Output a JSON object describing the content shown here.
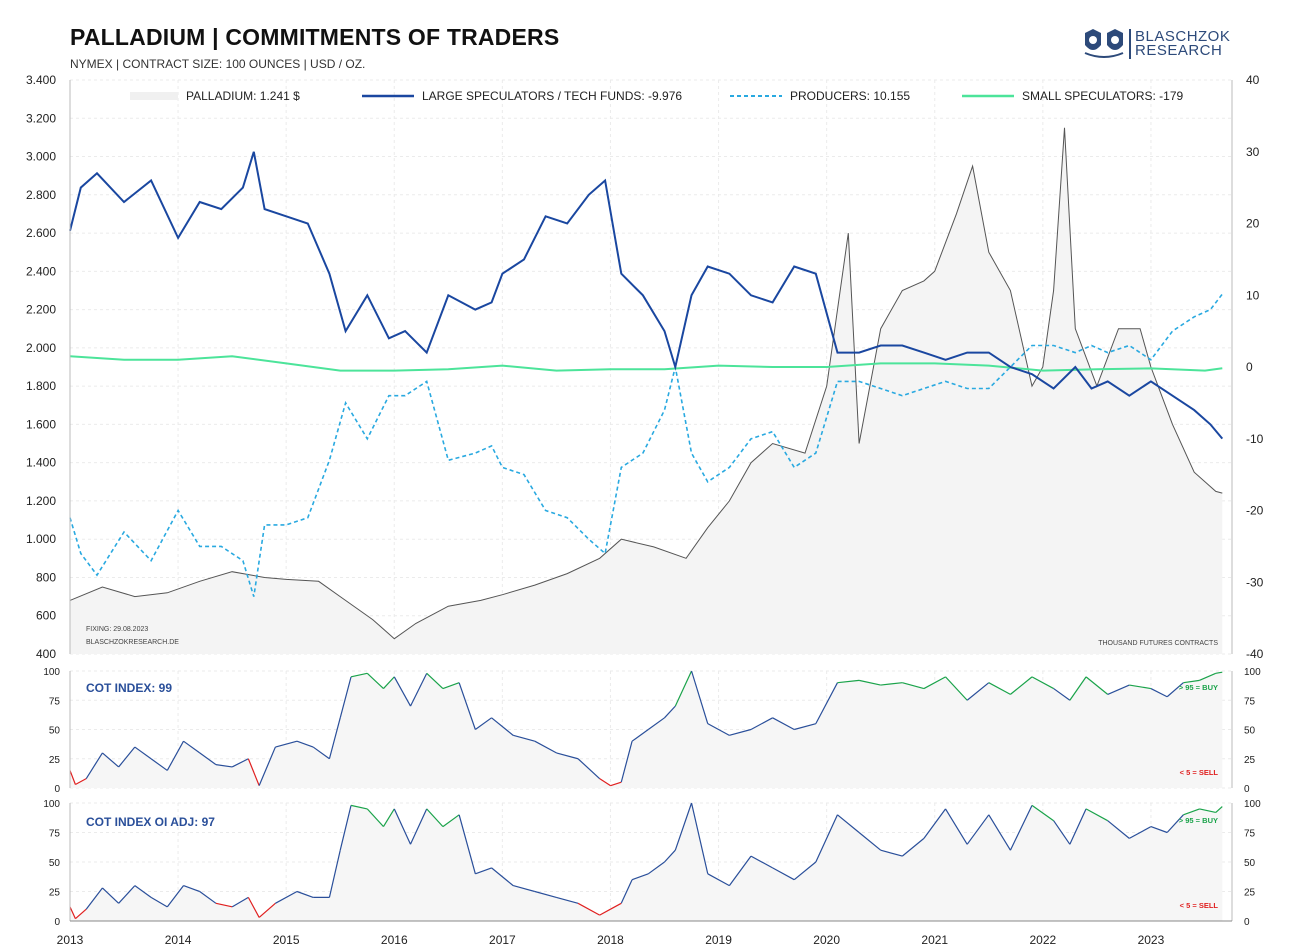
{
  "header": {
    "title": "PALLADIUM  |  COMMITMENTS OF TRADERS",
    "subtitle": "NYMEX | CONTRACT SIZE: 100 OUNCES | USD / OZ.",
    "logo_line1": "BLASCHZOK",
    "logo_line2": "RESEARCH",
    "logo_icon": "two-shields-logo-icon"
  },
  "notes": {
    "fixing": "FIXING: 29.08.2023",
    "source": "BLASCHZOKRESEARCH.DE",
    "units": "THOUSAND  FUTURES  CONTRACTS"
  },
  "panel2": {
    "label": "COT INDEX: 99",
    "buy_label": "> 95 = BUY",
    "sell_label": "< 5 = SELL"
  },
  "panel3": {
    "label": "COT INDEX OI ADJ: 97",
    "buy_label": "> 95 = BUY",
    "sell_label": "< 5 = SELL"
  },
  "colors": {
    "price": "#555555",
    "large_specs": "#1a47a0",
    "producers": "#29a9e0",
    "small_specs": "#4ce49a",
    "index_line": "#2a4f9a",
    "buy": "#1aa34a",
    "sell": "#e02020"
  },
  "chart_data": [
    {
      "type": "line",
      "title": "PALLADIUM | COMMITMENTS OF TRADERS",
      "x_ticks": [
        "2013",
        "2014",
        "2015",
        "2016",
        "2017",
        "2018",
        "2019",
        "2020",
        "2021",
        "2022",
        "2023"
      ],
      "ylim_left": [
        400,
        3400
      ],
      "ylim_right": [
        -40,
        40
      ],
      "y_ticks_left": [
        "400",
        "600",
        "800",
        "1.000",
        "1.200",
        "1.400",
        "1.600",
        "1.800",
        "2.000",
        "2.200",
        "2.400",
        "2.600",
        "2.800",
        "3.000",
        "3.200",
        "3.400"
      ],
      "y_ticks_right": [
        "-40",
        "-30",
        "-20",
        "-10",
        "0",
        "10",
        "20",
        "30",
        "40"
      ],
      "grid": true,
      "legend_position": "top",
      "legend": [
        "PALLADIUM: 1.241 $",
        "LARGE SPECULATORS / TECH FUNDS: -9.976",
        "PRODUCERS: 10.155",
        "SMALL SPECULATORS: -179"
      ],
      "series": [
        {
          "name": "PALLADIUM",
          "axis": "left",
          "x": [
            2013.0,
            2013.3,
            2013.6,
            2013.9,
            2014.2,
            2014.5,
            2014.8,
            2015.0,
            2015.3,
            2015.5,
            2015.8,
            2016.0,
            2016.2,
            2016.5,
            2016.8,
            2017.0,
            2017.3,
            2017.6,
            2017.9,
            2018.1,
            2018.4,
            2018.7,
            2018.9,
            2019.1,
            2019.3,
            2019.5,
            2019.8,
            2020.0,
            2020.1,
            2020.2,
            2020.3,
            2020.5,
            2020.7,
            2020.9,
            2021.0,
            2021.2,
            2021.35,
            2021.5,
            2021.7,
            2021.9,
            2022.0,
            2022.1,
            2022.2,
            2022.3,
            2022.5,
            2022.7,
            2022.9,
            2023.0,
            2023.2,
            2023.4,
            2023.6,
            2023.66
          ],
          "values": [
            680,
            750,
            700,
            720,
            780,
            830,
            800,
            790,
            780,
            700,
            580,
            480,
            560,
            650,
            680,
            710,
            760,
            820,
            900,
            1000,
            960,
            900,
            1060,
            1200,
            1400,
            1500,
            1450,
            1800,
            2200,
            2600,
            1500,
            2100,
            2300,
            2350,
            2400,
            2700,
            2950,
            2500,
            2300,
            1800,
            1900,
            2300,
            3150,
            2100,
            1800,
            2100,
            2100,
            1900,
            1600,
            1350,
            1250,
            1241
          ]
        },
        {
          "name": "LARGE SPECULATORS / TECH FUNDS",
          "axis": "right",
          "x": [
            2013.0,
            2013.1,
            2013.25,
            2013.5,
            2013.75,
            2014.0,
            2014.2,
            2014.4,
            2014.6,
            2014.7,
            2014.8,
            2015.0,
            2015.2,
            2015.4,
            2015.55,
            2015.75,
            2015.95,
            2016.1,
            2016.3,
            2016.5,
            2016.75,
            2016.9,
            2017.0,
            2017.2,
            2017.4,
            2017.6,
            2017.8,
            2017.95,
            2018.1,
            2018.3,
            2018.5,
            2018.6,
            2018.75,
            2018.9,
            2019.1,
            2019.3,
            2019.5,
            2019.7,
            2019.9,
            2020.1,
            2020.3,
            2020.5,
            2020.7,
            2020.9,
            2021.1,
            2021.3,
            2021.5,
            2021.7,
            2021.9,
            2022.1,
            2022.3,
            2022.45,
            2022.6,
            2022.8,
            2023.0,
            2023.2,
            2023.4,
            2023.55,
            2023.66
          ],
          "values": [
            19,
            25,
            27,
            23,
            26,
            18,
            23,
            22,
            25,
            30,
            22,
            21,
            20,
            13,
            5,
            10,
            4,
            5,
            2,
            10,
            8,
            9,
            13,
            15,
            21,
            20,
            24,
            26,
            13,
            10,
            5,
            0,
            10,
            14,
            13,
            10,
            9,
            14,
            13,
            2,
            2,
            3,
            3,
            2,
            1,
            2,
            2,
            0,
            -1,
            -3,
            0,
            -3,
            -2,
            -4,
            -2,
            -4,
            -6,
            -8,
            -9.976
          ]
        },
        {
          "name": "PRODUCERS",
          "axis": "right",
          "x": [
            2013.0,
            2013.1,
            2013.25,
            2013.5,
            2013.75,
            2014.0,
            2014.2,
            2014.4,
            2014.6,
            2014.7,
            2014.8,
            2015.0,
            2015.2,
            2015.4,
            2015.55,
            2015.75,
            2015.95,
            2016.1,
            2016.3,
            2016.5,
            2016.75,
            2016.9,
            2017.0,
            2017.2,
            2017.4,
            2017.6,
            2017.8,
            2017.95,
            2018.1,
            2018.3,
            2018.5,
            2018.6,
            2018.75,
            2018.9,
            2019.1,
            2019.3,
            2019.5,
            2019.7,
            2019.9,
            2020.1,
            2020.3,
            2020.5,
            2020.7,
            2020.9,
            2021.1,
            2021.3,
            2021.5,
            2021.7,
            2021.9,
            2022.1,
            2022.3,
            2022.45,
            2022.6,
            2022.8,
            2023.0,
            2023.2,
            2023.4,
            2023.55,
            2023.66
          ],
          "values": [
            -21,
            -26,
            -29,
            -23,
            -27,
            -20,
            -25,
            -25,
            -27,
            -32,
            -22,
            -22,
            -21,
            -13,
            -5,
            -10,
            -4,
            -4,
            -2,
            -13,
            -12,
            -11,
            -14,
            -15,
            -20,
            -21,
            -24,
            -26,
            -14,
            -12,
            -6,
            0,
            -12,
            -16,
            -14,
            -10,
            -9,
            -14,
            -12,
            -2,
            -2,
            -3,
            -4,
            -3,
            -2,
            -3,
            -3,
            0,
            3,
            3,
            2,
            3,
            2,
            3,
            1,
            5,
            7,
            8,
            10.155
          ]
        },
        {
          "name": "SMALL SPECULATORS",
          "axis": "right",
          "x": [
            2013.0,
            2013.5,
            2014.0,
            2014.5,
            2015.0,
            2015.5,
            2016.0,
            2016.5,
            2017.0,
            2017.5,
            2018.0,
            2018.5,
            2019.0,
            2019.5,
            2020.0,
            2020.5,
            2021.0,
            2021.5,
            2022.0,
            2022.5,
            2023.0,
            2023.5,
            2023.66
          ],
          "values": [
            1.5,
            1,
            1,
            1.5,
            0.5,
            -0.5,
            -0.5,
            -0.3,
            0.2,
            -0.5,
            -0.3,
            -0.3,
            0.2,
            0,
            0,
            0.5,
            0.5,
            0.2,
            -0.5,
            -0.3,
            -0.2,
            -0.5,
            -0.179
          ]
        }
      ]
    },
    {
      "type": "line",
      "title": "COT INDEX: 99",
      "ylim": [
        0,
        100
      ],
      "y_ticks": [
        "0",
        "25",
        "50",
        "75",
        "100"
      ],
      "grid": true,
      "thresholds": {
        "buy": 95,
        "sell": 5
      },
      "series": [
        {
          "name": "COT INDEX",
          "x": [
            2013.0,
            2013.05,
            2013.15,
            2013.3,
            2013.45,
            2013.6,
            2013.75,
            2013.9,
            2014.05,
            2014.2,
            2014.35,
            2014.5,
            2014.65,
            2014.75,
            2014.9,
            2015.1,
            2015.25,
            2015.4,
            2015.5,
            2015.6,
            2015.75,
            2015.9,
            2016.0,
            2016.15,
            2016.3,
            2016.45,
            2016.6,
            2016.75,
            2016.9,
            2017.1,
            2017.3,
            2017.5,
            2017.7,
            2017.9,
            2018.0,
            2018.1,
            2018.2,
            2018.35,
            2018.5,
            2018.6,
            2018.75,
            2018.9,
            2019.1,
            2019.3,
            2019.5,
            2019.7,
            2019.9,
            2020.1,
            2020.3,
            2020.5,
            2020.7,
            2020.9,
            2021.1,
            2021.3,
            2021.5,
            2021.7,
            2021.9,
            2022.1,
            2022.25,
            2022.4,
            2022.6,
            2022.8,
            2023.0,
            2023.15,
            2023.3,
            2023.45,
            2023.6,
            2023.66
          ],
          "values": [
            15,
            3,
            8,
            30,
            18,
            35,
            25,
            15,
            40,
            30,
            20,
            18,
            25,
            2,
            35,
            40,
            35,
            25,
            60,
            95,
            98,
            85,
            95,
            70,
            98,
            85,
            90,
            50,
            60,
            45,
            40,
            30,
            25,
            8,
            2,
            5,
            40,
            50,
            60,
            70,
            100,
            55,
            45,
            50,
            60,
            50,
            55,
            90,
            92,
            88,
            90,
            85,
            95,
            75,
            90,
            80,
            95,
            85,
            75,
            95,
            80,
            88,
            85,
            78,
            90,
            92,
            98,
            99
          ]
        }
      ]
    },
    {
      "type": "line",
      "title": "COT INDEX OI ADJ: 97",
      "ylim": [
        0,
        100
      ],
      "y_ticks": [
        "0",
        "25",
        "50",
        "75",
        "100"
      ],
      "grid": true,
      "thresholds": {
        "buy": 95,
        "sell": 5
      },
      "series": [
        {
          "name": "COT INDEX OI ADJ",
          "x": [
            2013.0,
            2013.05,
            2013.15,
            2013.3,
            2013.45,
            2013.6,
            2013.75,
            2013.9,
            2014.05,
            2014.2,
            2014.35,
            2014.5,
            2014.65,
            2014.75,
            2014.9,
            2015.1,
            2015.25,
            2015.4,
            2015.5,
            2015.6,
            2015.75,
            2015.9,
            2016.0,
            2016.15,
            2016.3,
            2016.45,
            2016.6,
            2016.75,
            2016.9,
            2017.1,
            2017.3,
            2017.5,
            2017.7,
            2017.9,
            2018.0,
            2018.1,
            2018.2,
            2018.35,
            2018.5,
            2018.6,
            2018.75,
            2018.9,
            2019.1,
            2019.3,
            2019.5,
            2019.7,
            2019.9,
            2020.1,
            2020.3,
            2020.5,
            2020.7,
            2020.9,
            2021.1,
            2021.3,
            2021.5,
            2021.7,
            2021.9,
            2022.1,
            2022.25,
            2022.4,
            2022.6,
            2022.8,
            2023.0,
            2023.15,
            2023.3,
            2023.45,
            2023.6,
            2023.66
          ],
          "values": [
            12,
            2,
            10,
            28,
            15,
            30,
            20,
            12,
            30,
            25,
            15,
            12,
            20,
            3,
            15,
            25,
            20,
            20,
            60,
            98,
            95,
            80,
            95,
            65,
            95,
            80,
            90,
            40,
            45,
            30,
            25,
            20,
            15,
            5,
            10,
            15,
            35,
            40,
            50,
            60,
            100,
            40,
            30,
            55,
            45,
            35,
            50,
            90,
            75,
            60,
            55,
            70,
            95,
            65,
            90,
            60,
            98,
            85,
            65,
            95,
            85,
            70,
            80,
            75,
            90,
            95,
            92,
            97
          ]
        }
      ]
    }
  ]
}
